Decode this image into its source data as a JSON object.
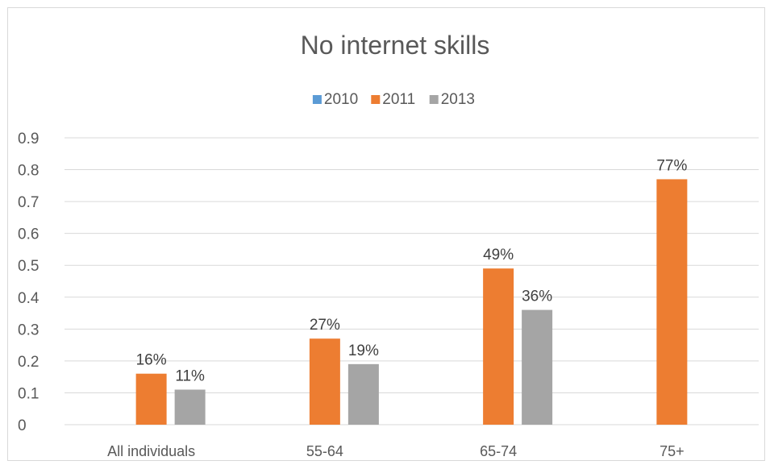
{
  "chart_data": {
    "type": "bar",
    "title": "No internet skills",
    "categories": [
      "All individuals",
      "55-64",
      "65-74",
      "75+"
    ],
    "series": [
      {
        "name": "2010",
        "color": "#5b9bd5",
        "values": [
          null,
          null,
          null,
          null
        ],
        "labels": [
          "",
          "",
          "",
          ""
        ]
      },
      {
        "name": "2011",
        "color": "#ed7d31",
        "values": [
          0.16,
          0.27,
          0.49,
          0.77
        ],
        "labels": [
          "16%",
          "27%",
          "49%",
          "77%"
        ]
      },
      {
        "name": "2013",
        "color": "#a5a5a5",
        "values": [
          0.11,
          0.19,
          0.36,
          null
        ],
        "labels": [
          "11%",
          "19%",
          "36%",
          ""
        ]
      }
    ],
    "yticks": [
      "0",
      "0.1",
      "0.2",
      "0.3",
      "0.4",
      "0.5",
      "0.6",
      "0.7",
      "0.8",
      "0.9"
    ],
    "ylim": [
      0,
      0.9
    ],
    "grid": true,
    "legend_position": "top"
  }
}
